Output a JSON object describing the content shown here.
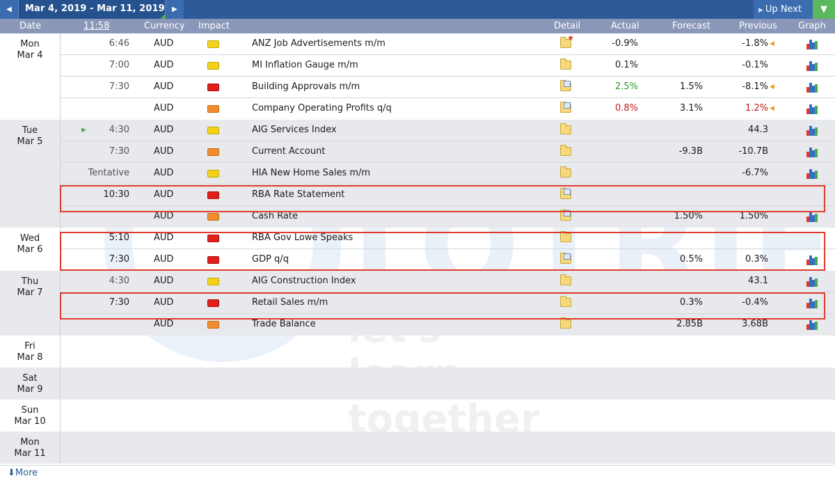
{
  "topbar": {
    "prev_icon": "arrow-left-icon",
    "date_range": "Mar 4, 2019 - Mar 11, 2019",
    "next_icon": "arrow-right-icon",
    "up_next": "Up Next",
    "filter_icon": "filter-icon"
  },
  "header": {
    "date": "Date",
    "time": "11:58",
    "currency": "Currency",
    "impact": "Impact",
    "detail": "Detail",
    "actual": "Actual",
    "forecast": "Forecast",
    "previous": "Previous",
    "graph": "Graph"
  },
  "days": [
    {
      "day": "Mon",
      "date": "Mar 4",
      "events": [
        {
          "time": "6:46",
          "currency": "AUD",
          "impact": "yellow",
          "event": "ANZ Job Advertisements m/m",
          "actual": "-0.9%",
          "forecast": "",
          "previous": "-1.8%"
        },
        {
          "time": "7:00",
          "currency": "AUD",
          "impact": "yellow",
          "event": "MI Inflation Gauge m/m",
          "actual": "0.1%",
          "forecast": "",
          "previous": "-0.1%"
        },
        {
          "time": "7:30",
          "currency": "AUD",
          "impact": "red",
          "event": "Building Approvals m/m",
          "actual": "2.5%",
          "forecast": "1.5%",
          "previous": "-8.1%"
        },
        {
          "time": "",
          "currency": "AUD",
          "impact": "orange",
          "event": "Company Operating Profits q/q",
          "actual": "0.8%",
          "forecast": "3.1%",
          "previous": "1.2%"
        }
      ]
    },
    {
      "day": "Tue",
      "date": "Mar 5",
      "events": [
        {
          "time": "4:30",
          "currency": "AUD",
          "impact": "yellow",
          "event": "AIG Services Index",
          "actual": "",
          "forecast": "",
          "previous": "44.3"
        },
        {
          "time": "7:30",
          "currency": "AUD",
          "impact": "orange",
          "event": "Current Account",
          "actual": "",
          "forecast": "-9.3B",
          "previous": "-10.7B"
        },
        {
          "time": "Tentative",
          "currency": "AUD",
          "impact": "yellow",
          "event": "HIA New Home Sales m/m",
          "actual": "",
          "forecast": "",
          "previous": "-6.7%"
        },
        {
          "time": "10:30",
          "currency": "AUD",
          "impact": "red",
          "event": "RBA Rate Statement",
          "actual": "",
          "forecast": "",
          "previous": ""
        },
        {
          "time": "",
          "currency": "AUD",
          "impact": "orange",
          "event": "Cash Rate",
          "actual": "",
          "forecast": "1.50%",
          "previous": "1.50%"
        }
      ]
    },
    {
      "day": "Wed",
      "date": "Mar 6",
      "events": [
        {
          "time": "5:10",
          "currency": "AUD",
          "impact": "red",
          "event": "RBA Gov Lowe Speaks",
          "actual": "",
          "forecast": "",
          "previous": ""
        },
        {
          "time": "7:30",
          "currency": "AUD",
          "impact": "red",
          "event": "GDP q/q",
          "actual": "",
          "forecast": "0.5%",
          "previous": "0.3%"
        }
      ]
    },
    {
      "day": "Thu",
      "date": "Mar 7",
      "events": [
        {
          "time": "4:30",
          "currency": "AUD",
          "impact": "yellow",
          "event": "AIG Construction Index",
          "actual": "",
          "forecast": "",
          "previous": "43.1"
        },
        {
          "time": "7:30",
          "currency": "AUD",
          "impact": "red",
          "event": "Retail Sales m/m",
          "actual": "",
          "forecast": "0.3%",
          "previous": "-0.4%"
        },
        {
          "time": "",
          "currency": "AUD",
          "impact": "orange",
          "event": "Trade Balance",
          "actual": "",
          "forecast": "2.85B",
          "previous": "3.68B"
        }
      ]
    },
    {
      "day": "Fri",
      "date": "Mar 8",
      "events": []
    },
    {
      "day": "Sat",
      "date": "Mar 9",
      "events": []
    },
    {
      "day": "Sun",
      "date": "Mar 10",
      "events": []
    },
    {
      "day": "Mon",
      "date": "Mar 11",
      "events": []
    }
  ],
  "watermark": {
    "brand": "TOTRIEU",
    "tagline": "let's learn together"
  },
  "footer": {
    "more": "More",
    "more_icon": "download-arrow-icon"
  },
  "colors": {
    "topbar": "#2e5a97",
    "header": "#8a97b8",
    "highlight": "#e03c2d",
    "high_impact": "#e0201b",
    "medium_impact": "#ef8e2e",
    "low_impact": "#f2d21b",
    "better": "#2a9a2a",
    "worse": "#c41a1a"
  }
}
